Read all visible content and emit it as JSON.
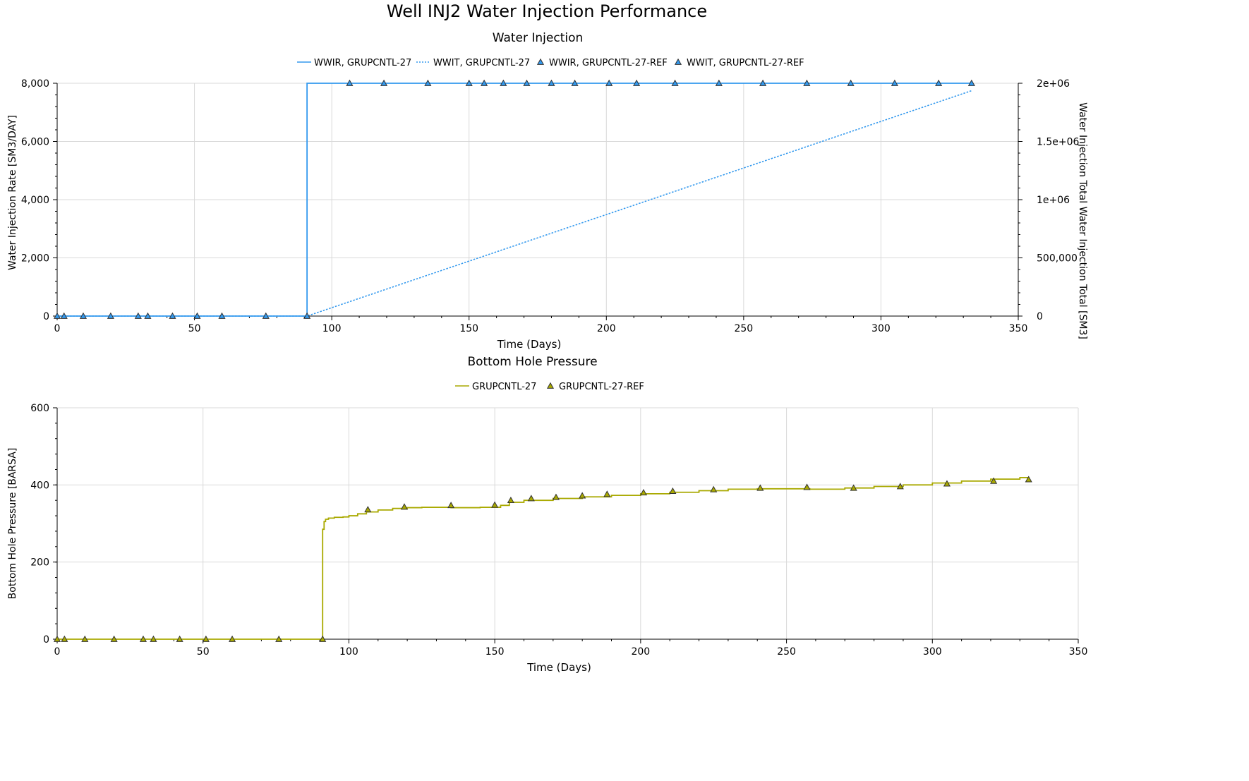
{
  "title": "Well INJ2 Water Injection Performance",
  "colors": {
    "blue": "#3399ee",
    "olive": "#a9a900",
    "grid": "#d9d9d9",
    "axis": "#000000"
  },
  "chart_data": [
    {
      "type": "line",
      "title": "Water Injection",
      "xlabel": "Time (Days)",
      "ylabel": "Water Injection Rate [SM3/DAY]",
      "y2label": "Water Injection Total Water Injection Total [SM3]",
      "xlim": [
        0,
        350
      ],
      "ylim": [
        0,
        8000
      ],
      "y2lim": [
        0,
        2000000
      ],
      "xticks": [
        0,
        50,
        100,
        150,
        200,
        250,
        300,
        350
      ],
      "yticks": [
        0,
        2000,
        4000,
        6000,
        8000
      ],
      "ytick_labels": [
        "0",
        "2,000",
        "4,000",
        "6,000",
        "8,000"
      ],
      "y2ticks": [
        0,
        500000,
        1000000,
        1500000,
        2000000
      ],
      "y2tick_labels": [
        "0",
        "500,000",
        "1e+06",
        "1.5e+06",
        "2e+06"
      ],
      "grid": true,
      "legend": "top-center",
      "series": [
        {
          "name": "WWIR, GRUPCNTL-27",
          "axis": "left",
          "style": "solid",
          "marker": "none",
          "step": true,
          "x": [
            0,
            91,
            91,
            333
          ],
          "y": [
            0,
            0,
            8000,
            8000
          ]
        },
        {
          "name": "WWIT, GRUPCNTL-27",
          "axis": "right",
          "style": "dotted",
          "marker": "none",
          "x": [
            0,
            91,
            333
          ],
          "y": [
            0,
            0,
            1936000
          ]
        },
        {
          "name": "WWIR, GRUPCNTL-27-REF",
          "axis": "left",
          "style": "none",
          "marker": "triangle",
          "x": [
            0,
            2.5,
            9.5,
            19.5,
            29.5,
            33,
            42,
            51,
            60,
            76,
            91,
            106.5,
            119,
            135,
            150,
            155.5,
            162.5,
            171,
            180,
            188.5,
            201,
            211,
            225,
            241,
            257,
            273,
            289,
            305,
            321,
            333
          ],
          "y": [
            0,
            0,
            0,
            0,
            0,
            0,
            0,
            0,
            0,
            0,
            0,
            8000,
            8000,
            8000,
            8000,
            8000,
            8000,
            8000,
            8000,
            8000,
            8000,
            8000,
            8000,
            8000,
            8000,
            8000,
            8000,
            8000,
            8000,
            8000
          ]
        },
        {
          "name": "WWIT, GRUPCNTL-27-REF",
          "axis": "right",
          "style": "none",
          "marker": "triangle",
          "x": [],
          "y": []
        }
      ]
    },
    {
      "type": "line",
      "title": "Bottom Hole Pressure",
      "xlabel": "Time (Days)",
      "ylabel": "Bottom Hole Pressure [BARSA]",
      "xlim": [
        0,
        350
      ],
      "ylim": [
        0,
        600
      ],
      "xticks": [
        0,
        50,
        100,
        150,
        200,
        250,
        300,
        350
      ],
      "yticks": [
        0,
        200,
        400,
        600
      ],
      "ytick_labels": [
        "0",
        "200",
        "400",
        "600"
      ],
      "grid": true,
      "legend": "top-center",
      "series": [
        {
          "name": "GRUPCNTL-27",
          "style": "solid",
          "marker": "none",
          "step": true,
          "x": [
            0,
            91,
            91,
            91.5,
            92,
            93,
            95,
            98,
            100,
            103,
            106,
            110,
            115,
            120,
            125,
            135,
            145,
            150,
            152,
            155,
            160,
            170,
            180,
            190,
            200,
            210,
            220,
            230,
            240,
            250,
            258,
            270,
            280,
            290,
            300,
            310,
            320,
            330,
            333
          ],
          "y": [
            0,
            0,
            285,
            305,
            311,
            314,
            316,
            317,
            320,
            325,
            330,
            335,
            339,
            341,
            342,
            341,
            342,
            342,
            347,
            355,
            360,
            365,
            369,
            373,
            377,
            381,
            385,
            389,
            390,
            390,
            389,
            392,
            396,
            400,
            405,
            410,
            415,
            419,
            420
          ]
        },
        {
          "name": "GRUPCNTL-27-REF",
          "style": "none",
          "marker": "triangle",
          "x": [
            0,
            2.5,
            9.5,
            19.5,
            29.5,
            33,
            42,
            51,
            60,
            76,
            91,
            106.5,
            119,
            135,
            150,
            155.5,
            162.5,
            171,
            180,
            188.5,
            201,
            211,
            225,
            241,
            257,
            273,
            289,
            305,
            321,
            333
          ],
          "y": [
            0,
            0,
            0,
            0,
            0,
            0,
            0,
            0,
            0,
            0,
            0,
            336,
            343,
            347,
            348,
            360,
            365,
            368,
            372,
            376,
            380,
            384,
            388,
            392,
            394,
            392,
            396,
            403,
            410,
            414
          ]
        }
      ]
    }
  ]
}
